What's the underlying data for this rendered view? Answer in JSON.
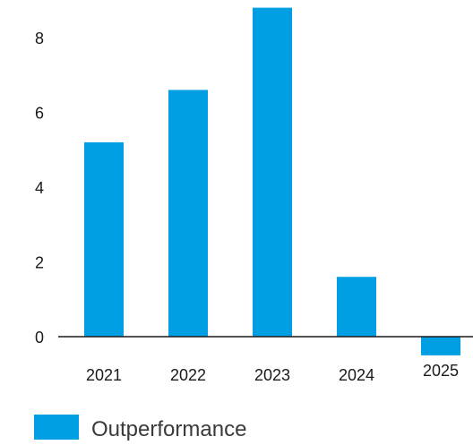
{
  "chart_data": {
    "type": "bar",
    "categories": [
      "2021",
      "2022",
      "2023",
      "2024",
      "2025"
    ],
    "series": [
      {
        "name": "Outperformance",
        "values": [
          5.2,
          6.6,
          8.8,
          1.6,
          -0.5
        ],
        "color": "#009fe3"
      }
    ],
    "yticks": [
      "0",
      "2",
      "4",
      "6",
      "8"
    ],
    "ylim": [
      -0.6,
      9.0
    ],
    "title": "",
    "xlabel": "",
    "ylabel": "",
    "grid": false,
    "legend": "bottom-left"
  }
}
